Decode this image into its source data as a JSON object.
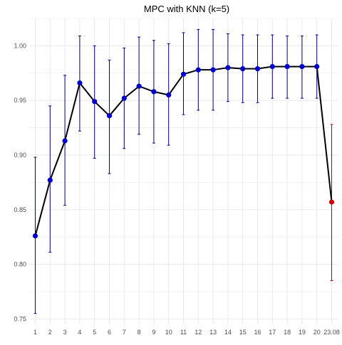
{
  "chart_data": {
    "type": "line",
    "title": "MPC with KNN (k=5)",
    "xlabel": "",
    "ylabel": "",
    "x": [
      "1",
      "2",
      "3",
      "4",
      "5",
      "6",
      "7",
      "8",
      "9",
      "10",
      "11",
      "12",
      "13",
      "14",
      "15",
      "16",
      "17",
      "18",
      "19",
      "20",
      "23.08"
    ],
    "series": [
      {
        "values": [
          0.826,
          0.877,
          0.913,
          0.966,
          0.949,
          0.936,
          0.952,
          0.963,
          0.958,
          0.955,
          0.974,
          0.978,
          0.978,
          0.98,
          0.979,
          0.979,
          0.981,
          0.981,
          0.981,
          0.981,
          0.857
        ],
        "upper": [
          0.898,
          0.945,
          0.973,
          1.009,
          1.0,
          0.987,
          0.998,
          1.008,
          1.005,
          1.002,
          1.012,
          1.015,
          1.015,
          1.011,
          1.01,
          1.01,
          1.01,
          1.009,
          1.009,
          1.01,
          0.928
        ],
        "lower": [
          0.755,
          0.811,
          0.854,
          0.922,
          0.897,
          0.883,
          0.906,
          0.919,
          0.911,
          0.909,
          0.937,
          0.941,
          0.941,
          0.949,
          0.948,
          0.948,
          0.952,
          0.952,
          0.952,
          0.952,
          0.785
        ],
        "colors": [
          "#0000cc",
          "#0000cc",
          "#0000cc",
          "#0000cc",
          "#0000cc",
          "#0000cc",
          "#0000cc",
          "#0000cc",
          "#0000cc",
          "#0000cc",
          "#0000cc",
          "#0000cc",
          "#0000cc",
          "#0000cc",
          "#0000cc",
          "#0000cc",
          "#0000cc",
          "#0000cc",
          "#0000cc",
          "#0000cc",
          "#cc0000"
        ],
        "errorbar_colors": [
          "#000080",
          "#000080",
          "#000080",
          "#000080",
          "#000080",
          "#000080",
          "#000080",
          "#000080",
          "#000080",
          "#000080",
          "#000080",
          "#000080",
          "#000080",
          "#000080",
          "#000080",
          "#000080",
          "#000080",
          "#000080",
          "#000080",
          "#000080",
          "#b40000"
        ],
        "line_color": "#000000"
      }
    ],
    "yticks": [
      "0.75",
      "0.80",
      "0.85",
      "0.90",
      "0.95",
      "1.00"
    ],
    "ylim": [
      0.745,
      1.025
    ],
    "grid": true,
    "legend": "none",
    "background": "#ffffff",
    "grid_color": "#ebebeb"
  }
}
